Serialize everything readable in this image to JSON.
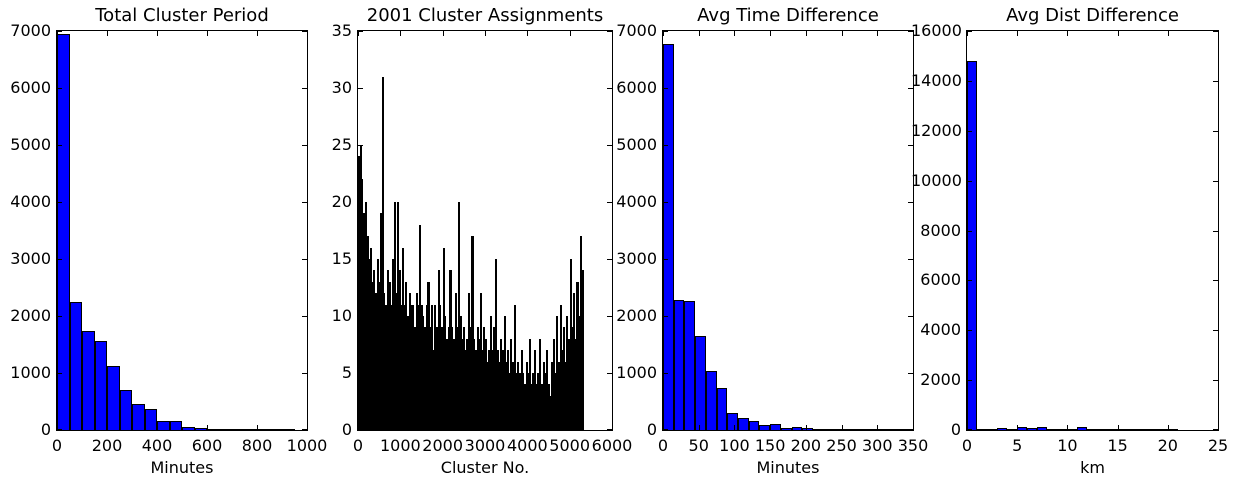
{
  "figure": {
    "background": "#ffffff",
    "frame_color": "#000000"
  },
  "chart_data": [
    {
      "type": "bar",
      "kind": "histogram",
      "title": "Total Cluster Period",
      "xlabel": "Minutes",
      "bar_color": "#0000ff",
      "edge_color": "#000000",
      "xlim": [
        0,
        1000
      ],
      "ylim": [
        0,
        7000
      ],
      "xticks": [
        0,
        200,
        400,
        600,
        800,
        1000
      ],
      "yticks": [
        0,
        1000,
        2000,
        3000,
        4000,
        5000,
        6000,
        7000
      ],
      "bin_start": 0,
      "bin_width": 50,
      "values": [
        6950,
        2250,
        1730,
        1560,
        1120,
        700,
        460,
        360,
        150,
        160,
        60,
        40,
        10,
        20,
        20,
        10,
        5,
        25,
        5,
        0
      ],
      "grid": false
    },
    {
      "type": "bar",
      "kind": "histogram",
      "title": "2001 Cluster Assignments",
      "xlabel": "Cluster No.",
      "bar_color": "#000000",
      "edge_color": null,
      "xlim": [
        0,
        6000
      ],
      "ylim": [
        0,
        35
      ],
      "xticks": [
        0,
        1000,
        2000,
        3000,
        4000,
        5000,
        6000
      ],
      "yticks": [
        0,
        5,
        10,
        15,
        20,
        25,
        30,
        35
      ],
      "bin_start": 0,
      "bin_width": 40,
      "note": "Dense plot of ~5600 hairline black bars (one per cluster); values are the sampled top envelope read at bin width 40, max spike 31 near cluster 580.",
      "values": [
        24,
        25,
        22,
        19,
        20,
        17,
        15,
        16,
        13,
        14,
        12,
        15,
        13,
        19,
        31,
        12,
        11,
        14,
        13,
        11,
        15,
        20,
        12,
        20,
        14,
        11,
        16,
        11,
        13,
        10,
        12,
        11,
        11,
        9,
        12,
        11,
        18,
        11,
        10,
        9,
        11,
        13,
        9,
        11,
        7,
        11,
        9,
        14,
        11,
        9,
        16,
        10,
        8,
        9,
        14,
        9,
        8,
        12,
        9,
        20,
        10,
        8,
        9,
        7,
        8,
        12,
        9,
        17,
        8,
        7,
        9,
        8,
        12,
        7,
        9,
        8,
        6,
        7,
        10,
        7,
        9,
        15,
        7,
        6,
        8,
        7,
        10,
        6,
        7,
        5,
        8,
        6,
        11,
        5,
        6,
        5,
        7,
        5,
        4,
        6,
        5,
        8,
        4,
        5,
        7,
        4,
        5,
        8,
        4,
        6,
        5,
        7,
        4,
        3,
        6,
        8,
        5,
        10,
        6,
        11,
        7,
        9,
        6,
        10,
        8,
        15,
        9,
        12,
        8,
        13,
        10,
        17,
        14
      ],
      "grid": false
    },
    {
      "type": "bar",
      "kind": "histogram",
      "title": "Avg Time Difference",
      "xlabel": "Minutes",
      "bar_color": "#0000ff",
      "edge_color": "#000000",
      "xlim": [
        0,
        350
      ],
      "ylim": [
        0,
        7000
      ],
      "xticks": [
        0,
        50,
        100,
        150,
        200,
        250,
        300,
        350
      ],
      "yticks": [
        0,
        1000,
        2000,
        3000,
        4000,
        5000,
        6000,
        7000
      ],
      "bin_start": 0,
      "bin_width": 15,
      "values": [
        6770,
        2280,
        2260,
        1650,
        1030,
        730,
        300,
        210,
        160,
        80,
        110,
        40,
        45,
        30,
        25,
        15,
        10,
        15,
        25,
        8,
        20,
        5,
        3
      ],
      "grid": false
    },
    {
      "type": "bar",
      "kind": "histogram",
      "title": "Avg Dist Difference",
      "xlabel": "km",
      "bar_color": "#0000ff",
      "edge_color": "#000000",
      "xlim": [
        0,
        25
      ],
      "ylim": [
        0,
        16000
      ],
      "xticks": [
        0,
        5,
        10,
        15,
        20,
        25
      ],
      "yticks": [
        0,
        2000,
        4000,
        6000,
        8000,
        10000,
        12000,
        14000,
        16000
      ],
      "bin_start": 0,
      "bin_width": 1,
      "values": [
        14800,
        20,
        30,
        80,
        50,
        110,
        90,
        110,
        40,
        30,
        50,
        110,
        30,
        30,
        20,
        30,
        10,
        30,
        10,
        30,
        5,
        0,
        0,
        0,
        0
      ],
      "grid": false
    }
  ]
}
